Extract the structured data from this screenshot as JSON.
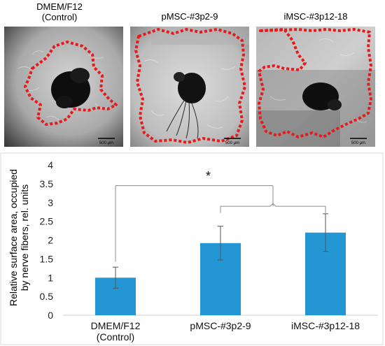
{
  "panels": [
    {
      "title_line1": "DMEM/F12",
      "title_line2": "(Control)",
      "scale_label": "500 µm"
    },
    {
      "title_line1": "pMSC-#3p2-9",
      "title_line2": "",
      "scale_label": "500 µm"
    },
    {
      "title_line1": "iMSC-#3p12-18",
      "title_line2": "",
      "scale_label": "500 µm"
    }
  ],
  "colors": {
    "bar": "#2496d3",
    "outline": "#e8191b",
    "axis": "#cfcfcf",
    "bracket": "#8c8c8c"
  },
  "chart_data": {
    "type": "bar",
    "categories": [
      [
        "DMEM/F12",
        "(Control)"
      ],
      [
        "pMSC-#3p2-9"
      ],
      [
        "iMSC-#3p12-18"
      ]
    ],
    "values": [
      1.0,
      1.92,
      2.2
    ],
    "error": [
      0.28,
      0.45,
      0.5
    ],
    "ylabel_line1": "Relative surface area, occupied",
    "ylabel_line2": "by nerve fibers, rel. units",
    "ylim": [
      0,
      4
    ],
    "yticks": [
      "0",
      "0.5",
      "1",
      "1.5",
      "2",
      "2.5",
      "3",
      "3.5",
      "4"
    ],
    "annotation": "*",
    "grid": false
  }
}
